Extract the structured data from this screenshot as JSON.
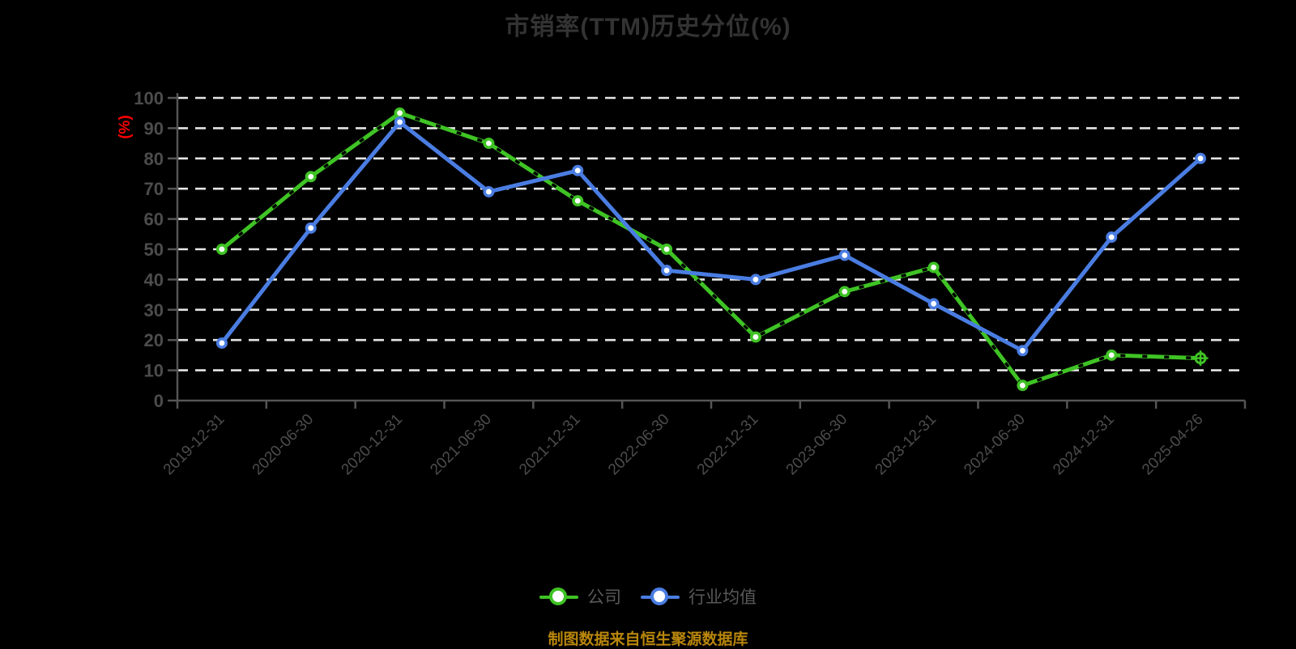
{
  "title": "市销率(TTM)历史分位(%)",
  "source_note": "制图数据来自恒生聚源数据库",
  "chart_data": {
    "type": "line",
    "title": "市销率(TTM)历史分位(%)",
    "xlabel": "",
    "ylabel": "(%)",
    "ylim": [
      0,
      100
    ],
    "ytick_step": 10,
    "grid": true,
    "legend_position": "bottom",
    "categories": [
      "2019-12-31",
      "2020-06-30",
      "2020-12-31",
      "2021-06-30",
      "2021-12-31",
      "2022-06-30",
      "2022-12-31",
      "2023-06-30",
      "2023-12-31",
      "2024-06-30",
      "2024-12-31",
      "2025-04-26"
    ],
    "series": [
      {
        "id": "company",
        "name": "公司",
        "color": "#3fc325",
        "marker": "circle",
        "last_marker": "circle-cross",
        "dash_overlay": "#000000",
        "values": [
          50,
          74,
          95,
          85,
          66,
          50,
          21,
          36,
          44,
          5,
          15,
          14
        ]
      },
      {
        "id": "industry-average",
        "name": "行业均值",
        "color": "#4a7de2",
        "marker": "circle",
        "values": [
          19,
          57,
          92,
          69,
          76,
          43,
          40,
          48,
          32,
          16.5,
          54,
          80
        ]
      }
    ],
    "style": {
      "background": "#000000",
      "title_color": "#333333",
      "axis_color": "#555555",
      "tick_label_color": "#4c4c4c",
      "grid_color": "#e6e6e6",
      "ylabel_color": "#ff0000",
      "legend_text_color": "#595959",
      "source_color": "#b8860b"
    }
  }
}
